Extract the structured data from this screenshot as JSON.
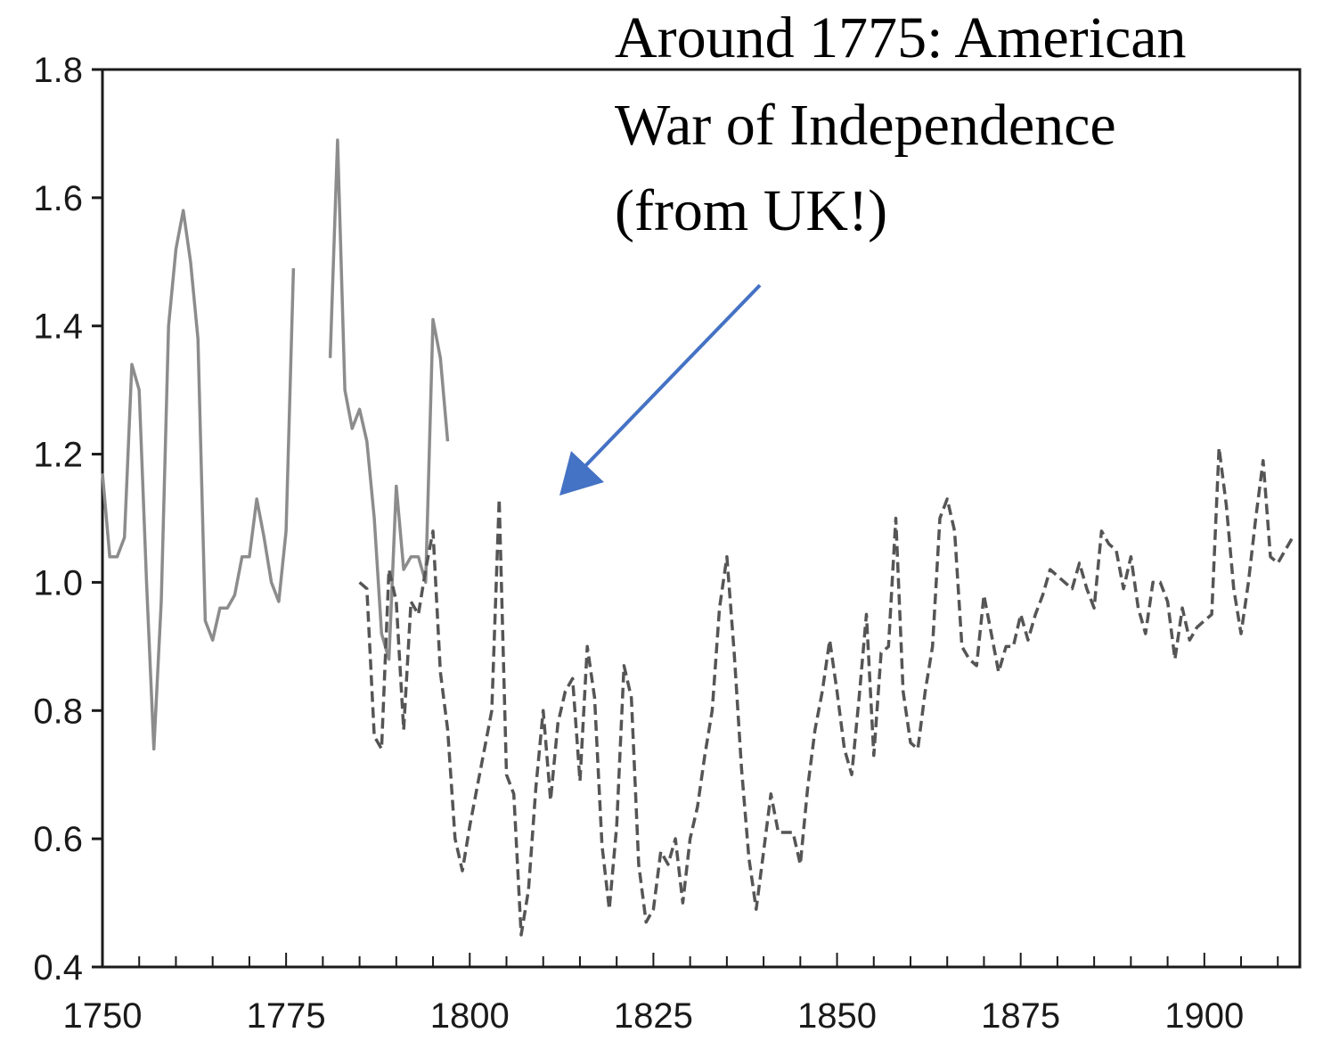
{
  "chart_data": {
    "type": "line",
    "title": "",
    "xlabel": "",
    "ylabel": "",
    "xlim": [
      1750,
      1913
    ],
    "ylim": [
      0.4,
      1.8
    ],
    "grid": false,
    "x_ticks": [
      1750,
      1775,
      1800,
      1825,
      1850,
      1875,
      1900
    ],
    "x_tick_labels": [
      "1750",
      "1775",
      "1800",
      "1825",
      "1850",
      "1875",
      "1900"
    ],
    "y_ticks": [
      0.4,
      0.6,
      0.8,
      1.0,
      1.2,
      1.4,
      1.6,
      1.8
    ],
    "y_tick_labels": [
      "0.4",
      "0.6",
      "0.8",
      "1.0",
      "1.2",
      "1.4",
      "1.6",
      "1.8"
    ],
    "series": [
      {
        "name": "series-1-solid-gray",
        "style": "solid",
        "color": "#8c8c8c",
        "points": [
          [
            1750,
            1.17
          ],
          [
            1751,
            1.04
          ],
          [
            1752,
            1.04
          ],
          [
            1753,
            1.07
          ],
          [
            1754,
            1.34
          ],
          [
            1755,
            1.3
          ],
          [
            1756,
            1.0
          ],
          [
            1757,
            0.74
          ],
          [
            1758,
            0.97
          ],
          [
            1759,
            1.4
          ],
          [
            1760,
            1.52
          ],
          [
            1761,
            1.58
          ],
          [
            1762,
            1.5
          ],
          [
            1763,
            1.38
          ],
          [
            1764,
            0.94
          ],
          [
            1765,
            0.91
          ],
          [
            1766,
            0.96
          ],
          [
            1767,
            0.96
          ],
          [
            1768,
            0.98
          ],
          [
            1769,
            1.04
          ],
          [
            1770,
            1.04
          ],
          [
            1771,
            1.13
          ],
          [
            1772,
            1.07
          ],
          [
            1773,
            1.0
          ],
          [
            1774,
            0.97
          ],
          [
            1775,
            1.08
          ],
          [
            1776,
            1.49
          ],
          null,
          [
            1781,
            1.35
          ],
          [
            1782,
            1.69
          ],
          [
            1783,
            1.3
          ],
          [
            1784,
            1.24
          ],
          [
            1785,
            1.27
          ],
          [
            1786,
            1.22
          ],
          [
            1787,
            1.1
          ],
          [
            1788,
            0.92
          ],
          [
            1789,
            0.88
          ],
          [
            1790,
            1.15
          ],
          [
            1791,
            1.02
          ],
          [
            1792,
            1.04
          ],
          [
            1793,
            1.04
          ],
          [
            1794,
            1.0
          ],
          [
            1795,
            1.41
          ],
          [
            1796,
            1.35
          ],
          [
            1797,
            1.22
          ]
        ]
      },
      {
        "name": "series-2-dashed",
        "style": "dashed",
        "color": "#555555",
        "points": [
          [
            1785,
            1.0
          ],
          [
            1786,
            0.99
          ],
          [
            1787,
            0.76
          ],
          [
            1788,
            0.74
          ],
          [
            1789,
            1.02
          ],
          [
            1790,
            0.97
          ],
          [
            1791,
            0.77
          ],
          [
            1792,
            0.97
          ],
          [
            1793,
            0.95
          ],
          [
            1794,
            1.02
          ],
          [
            1795,
            1.08
          ],
          [
            1796,
            0.86
          ],
          [
            1797,
            0.77
          ],
          [
            1798,
            0.6
          ],
          [
            1799,
            0.55
          ],
          [
            1800,
            0.62
          ],
          [
            1801,
            0.68
          ],
          [
            1802,
            0.74
          ],
          [
            1803,
            0.8
          ],
          [
            1804,
            1.13
          ],
          [
            1805,
            0.7
          ],
          [
            1806,
            0.67
          ],
          [
            1807,
            0.45
          ],
          [
            1808,
            0.52
          ],
          [
            1809,
            0.68
          ],
          [
            1810,
            0.8
          ],
          [
            1811,
            0.66
          ],
          [
            1812,
            0.78
          ],
          [
            1813,
            0.83
          ],
          [
            1814,
            0.85
          ],
          [
            1815,
            0.69
          ],
          [
            1816,
            0.9
          ],
          [
            1817,
            0.82
          ],
          [
            1818,
            0.59
          ],
          [
            1819,
            0.49
          ],
          [
            1820,
            0.62
          ],
          [
            1821,
            0.87
          ],
          [
            1822,
            0.82
          ],
          [
            1823,
            0.56
          ],
          [
            1824,
            0.47
          ],
          [
            1825,
            0.49
          ],
          [
            1826,
            0.58
          ],
          [
            1827,
            0.56
          ],
          [
            1828,
            0.6
          ],
          [
            1829,
            0.5
          ],
          [
            1830,
            0.6
          ],
          [
            1831,
            0.65
          ],
          [
            1832,
            0.73
          ],
          [
            1833,
            0.8
          ],
          [
            1834,
            0.96
          ],
          [
            1835,
            1.04
          ],
          [
            1836,
            0.89
          ],
          [
            1837,
            0.71
          ],
          [
            1838,
            0.57
          ],
          [
            1839,
            0.49
          ],
          [
            1840,
            0.58
          ],
          [
            1841,
            0.67
          ],
          [
            1842,
            0.61
          ],
          [
            1843,
            0.61
          ],
          [
            1844,
            0.61
          ],
          [
            1845,
            0.56
          ],
          [
            1846,
            0.68
          ],
          [
            1847,
            0.77
          ],
          [
            1848,
            0.83
          ],
          [
            1849,
            0.91
          ],
          [
            1850,
            0.83
          ],
          [
            1851,
            0.74
          ],
          [
            1852,
            0.7
          ],
          [
            1853,
            0.82
          ],
          [
            1854,
            0.95
          ],
          [
            1855,
            0.73
          ],
          [
            1856,
            0.89
          ],
          [
            1857,
            0.9
          ],
          [
            1858,
            1.1
          ],
          [
            1859,
            0.83
          ],
          [
            1860,
            0.75
          ],
          [
            1861,
            0.74
          ],
          [
            1862,
            0.83
          ],
          [
            1863,
            0.9
          ],
          [
            1864,
            1.1
          ],
          [
            1865,
            1.13
          ],
          [
            1866,
            1.08
          ],
          [
            1867,
            0.9
          ],
          [
            1868,
            0.88
          ],
          [
            1869,
            0.87
          ],
          [
            1870,
            0.98
          ],
          [
            1871,
            0.92
          ],
          [
            1872,
            0.86
          ],
          [
            1873,
            0.9
          ],
          [
            1874,
            0.9
          ],
          [
            1875,
            0.95
          ],
          [
            1876,
            0.91
          ],
          [
            1877,
            0.95
          ],
          [
            1878,
            0.98
          ],
          [
            1879,
            1.02
          ],
          [
            1880,
            1.01
          ],
          [
            1881,
            1.0
          ],
          [
            1882,
            0.99
          ],
          [
            1883,
            1.03
          ],
          [
            1884,
            0.99
          ],
          [
            1885,
            0.96
          ],
          [
            1886,
            1.08
          ],
          [
            1887,
            1.06
          ],
          [
            1888,
            1.05
          ],
          [
            1889,
            0.99
          ],
          [
            1890,
            1.04
          ],
          [
            1891,
            0.96
          ],
          [
            1892,
            0.92
          ],
          [
            1893,
            1.0
          ],
          [
            1894,
            1.0
          ],
          [
            1895,
            0.97
          ],
          [
            1896,
            0.88
          ],
          [
            1897,
            0.96
          ],
          [
            1898,
            0.91
          ],
          [
            1899,
            0.93
          ],
          [
            1900,
            0.94
          ],
          [
            1901,
            0.95
          ],
          [
            1902,
            1.21
          ],
          [
            1903,
            1.12
          ],
          [
            1904,
            0.99
          ],
          [
            1905,
            0.92
          ],
          [
            1906,
            1.0
          ],
          [
            1907,
            1.1
          ],
          [
            1908,
            1.19
          ],
          [
            1909,
            1.04
          ],
          [
            1910,
            1.03
          ],
          [
            1911,
            1.05
          ],
          [
            1912,
            1.07
          ]
        ]
      }
    ],
    "annotations": [
      {
        "lines": [
          "Around 1775: American",
          "War of Independence",
          "(from UK!)"
        ],
        "arrow_color": "#4472c4"
      }
    ]
  }
}
